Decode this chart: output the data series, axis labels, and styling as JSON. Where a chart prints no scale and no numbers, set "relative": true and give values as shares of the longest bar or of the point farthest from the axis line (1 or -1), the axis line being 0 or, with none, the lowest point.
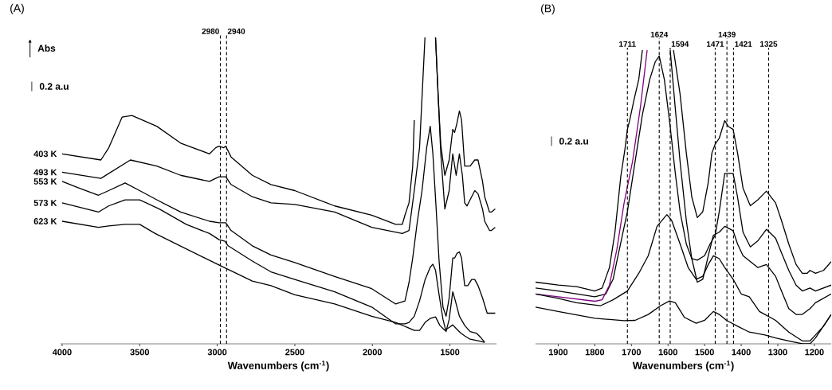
{
  "chart_data": [
    {
      "type": "line",
      "relative": true,
      "title": "(A)",
      "ylabel": "Abs",
      "xlabel": "Wavenumbers (cm$^{-1}$)",
      "annotations": [
        "0.2 a.u"
      ],
      "xlim": [
        4010,
        1200
      ],
      "xticks": [
        4000,
        3500,
        3000,
        2500,
        2000,
        1500
      ],
      "ref_lines": [
        {
          "axis": "x",
          "value": 2980,
          "label": "2980",
          "line_style": "dashed",
          "color": "#000000"
        },
        {
          "axis": "x",
          "value": 2940,
          "label": "2940",
          "line_style": "dashed",
          "color": "#000000"
        }
      ],
      "series": [
        {
          "name": "403 K",
          "color": "#000000",
          "x": [
            4000,
            3750,
            3699,
            3613,
            3550,
            3390,
            3236,
            3050,
            3010,
            2988,
            2960,
            2945,
            2911,
            2774,
            2654,
            2500,
            2243,
            2004,
            1850,
            1807,
            1790,
            1764,
            1740,
            1730,
            1700,
            1593,
            1575,
            1559,
            1533,
            1505,
            1482,
            1470,
            1455,
            1439,
            1425,
            1405,
            1390,
            1370,
            1340,
            1319,
            1290,
            1276,
            1245,
            1233,
            1208
          ],
          "values": [
            0.62,
            0.6,
            0.64,
            0.74,
            0.745,
            0.71,
            0.655,
            0.62,
            0.64,
            0.645,
            0.64,
            0.645,
            0.61,
            0.55,
            0.52,
            0.5,
            0.45,
            0.42,
            0.39,
            0.39,
            0.42,
            0.46,
            0.58,
            0.73,
            null,
            1.0,
            0.8,
            0.65,
            0.55,
            0.6,
            0.7,
            0.69,
            0.72,
            0.76,
            0.73,
            0.58,
            0.58,
            0.58,
            0.6,
            0.6,
            0.53,
            0.48,
            0.43,
            0.43,
            0.44
          ]
        },
        {
          "name": "493 K",
          "color": "#000000",
          "x": [
            4000,
            3750,
            3560,
            3390,
            3236,
            3050,
            3010,
            2988,
            2960,
            2945,
            2911,
            2774,
            2654,
            2500,
            2243,
            2004,
            1807,
            1764,
            1730,
            1696,
            1661,
            1630,
            1593,
            1559,
            1533,
            1505,
            1482,
            1460,
            1439,
            1420,
            1405,
            1390,
            1370,
            1340,
            1319,
            1290,
            1276,
            1245,
            1233,
            1208
          ],
          "values": [
            0.56,
            0.54,
            0.6,
            0.58,
            0.55,
            0.53,
            0.54,
            0.545,
            0.545,
            0.545,
            0.52,
            0.48,
            0.46,
            0.455,
            0.43,
            0.38,
            0.36,
            0.37,
            0.5,
            0.64,
            1.0,
            null,
            1.0,
            0.62,
            0.44,
            0.5,
            0.62,
            0.55,
            0.62,
            0.55,
            0.46,
            0.45,
            0.47,
            0.5,
            0.49,
            0.44,
            0.4,
            0.37,
            0.37,
            0.38
          ]
        },
        {
          "name": "553 K",
          "color": "#000000",
          "x": [
            4000,
            3900,
            3766,
            3700,
            3594,
            3500,
            3390,
            3236,
            3050,
            2988,
            2945,
            2911,
            2774,
            2654,
            2500,
            2243,
            2004,
            1850,
            1790,
            1764,
            1740,
            1730,
            1710,
            1680,
            1650,
            1627,
            1610,
            1590,
            1570,
            1545,
            1525,
            1505,
            1482,
            1470,
            1455,
            1439,
            1425,
            1405,
            1385,
            1360,
            1340,
            1319,
            1290,
            1260,
            1233,
            1208
          ],
          "values": [
            0.53,
            0.51,
            0.485,
            0.5,
            0.525,
            0.5,
            0.47,
            0.43,
            0.4,
            0.395,
            0.395,
            0.37,
            0.32,
            0.29,
            0.265,
            0.22,
            0.18,
            0.13,
            0.14,
            0.2,
            0.28,
            0.32,
            0.4,
            0.5,
            0.64,
            0.71,
            0.62,
            0.45,
            0.27,
            0.12,
            0.09,
            0.15,
            0.28,
            0.28,
            0.295,
            0.3,
            0.28,
            0.19,
            0.19,
            0.21,
            0.21,
            0.19,
            0.15,
            0.1,
            0.1,
            0.1
          ]
        },
        {
          "name": "573 K",
          "color": "#000000",
          "x": [
            4000,
            3766,
            3700,
            3594,
            3500,
            3373,
            3200,
            3050,
            2988,
            2950,
            2930,
            2774,
            2654,
            2500,
            2243,
            2004,
            1850,
            1790,
            1764,
            1730,
            1696,
            1660,
            1627,
            1610,
            1593,
            1570,
            1545,
            1525,
            1505,
            1482,
            1465,
            1439,
            1405,
            1370,
            1330,
            1300,
            1276
          ],
          "values": [
            0.46,
            0.43,
            0.45,
            0.47,
            0.47,
            0.44,
            0.39,
            0.36,
            0.34,
            0.335,
            0.32,
            0.27,
            0.235,
            0.21,
            0.17,
            0.12,
            0.065,
            0.065,
            0.07,
            0.09,
            0.14,
            0.21,
            0.25,
            0.26,
            0.24,
            0.16,
            0.08,
            0.04,
            0.08,
            0.17,
            0.14,
            0.09,
            0.06,
            0.04,
            0.035,
            0.02,
            0.005
          ]
        },
        {
          "name": "623 K",
          "color": "#000000",
          "x": [
            4000,
            3766,
            3700,
            3594,
            3500,
            3400,
            3200,
            3000,
            2774,
            2654,
            2500,
            2243,
            2004,
            1850,
            1730,
            1696,
            1660,
            1627,
            1593,
            1565,
            1533,
            1500,
            1482,
            1460,
            1430,
            1405,
            1370,
            1319,
            1276
          ],
          "values": [
            0.4,
            0.38,
            0.385,
            0.39,
            0.39,
            0.36,
            0.31,
            0.26,
            0.205,
            0.19,
            0.16,
            0.13,
            0.09,
            0.07,
            0.044,
            0.044,
            0.07,
            0.083,
            0.088,
            0.06,
            0.044,
            0.055,
            0.062,
            0.05,
            0.035,
            0.026,
            0.015,
            0.01,
            0.005
          ]
        }
      ]
    },
    {
      "type": "line",
      "relative": true,
      "title": "(B)",
      "xlabel": "Wavenumbers (cm$^{-1}$)",
      "annotations": [
        "0.2 a.u"
      ],
      "xlim": [
        1962,
        1154
      ],
      "xticks": [
        1900,
        1800,
        1700,
        1600,
        1500,
        1400,
        1300,
        1200
      ],
      "ref_lines": [
        {
          "axis": "x",
          "value": 1711,
          "label": "1711",
          "line_style": "dashed",
          "color": "#000000"
        },
        {
          "axis": "x",
          "value": 1624,
          "label": "1624",
          "line_style": "dashed",
          "color": "#000000"
        },
        {
          "axis": "x",
          "value": 1594,
          "label": "1594",
          "line_style": "dashed",
          "color": "#000000"
        },
        {
          "axis": "x",
          "value": 1471,
          "label": "1471",
          "line_style": "dashed",
          "color": "#000000"
        },
        {
          "axis": "x",
          "value": 1439,
          "label": "1439",
          "line_style": "dashed",
          "color": "#000000"
        },
        {
          "axis": "x",
          "value": 1421,
          "label": "1421",
          "line_style": "dashed",
          "color": "#000000"
        },
        {
          "axis": "x",
          "value": 1325,
          "label": "1325",
          "line_style": "dashed",
          "color": "#000000"
        }
      ],
      "series": [
        {
          "color": "#000000",
          "x": [
            1962,
            1900,
            1850,
            1800,
            1780,
            1760,
            1745,
            1729,
            1718,
            1711,
            1705,
            1693,
            1680,
            1670,
            1630,
            1585,
            1567,
            1550,
            1535,
            1520,
            1505,
            1490,
            1480,
            1471,
            1460,
            1445,
            1435,
            1422,
            1410,
            1395,
            1375,
            1355,
            1331,
            1306,
            1290,
            1270,
            1250,
            1233,
            1220,
            1212,
            1197,
            1175,
            1154
          ],
          "values": [
            0.21,
            0.2,
            0.195,
            0.18,
            0.19,
            0.26,
            0.38,
            0.57,
            0.66,
            0.73,
            0.76,
            0.83,
            0.9,
            1.0,
            null,
            1.0,
            0.85,
            0.65,
            0.5,
            0.43,
            0.45,
            0.55,
            0.65,
            0.68,
            0.7,
            0.76,
            0.74,
            0.73,
            0.65,
            0.53,
            0.47,
            0.49,
            0.52,
            0.48,
            0.42,
            0.34,
            0.27,
            0.24,
            0.24,
            0.25,
            0.24,
            0.25,
            0.28
          ]
        },
        {
          "color": "#000000",
          "x": [
            1962,
            1900,
            1800,
            1770,
            1750,
            1740,
            1711,
            1690,
            1670,
            1650,
            1635,
            1624,
            1610,
            1595,
            1580,
            1567,
            1550,
            1535,
            1520,
            1500,
            1485,
            1471,
            1460,
            1445,
            1422,
            1410,
            1395,
            1375,
            1355,
            1331,
            1306,
            1290,
            1270,
            1250,
            1233,
            1212,
            1197,
            1154
          ],
          "values": [
            0.19,
            0.18,
            0.16,
            0.17,
            0.22,
            0.28,
            0.45,
            0.62,
            0.78,
            0.9,
            0.96,
            0.98,
            0.9,
            0.75,
            0.58,
            0.45,
            0.34,
            0.29,
            0.285,
            0.3,
            0.34,
            0.37,
            0.45,
            0.58,
            0.58,
            0.5,
            0.38,
            0.33,
            0.35,
            0.39,
            0.36,
            0.31,
            0.25,
            0.2,
            0.18,
            0.19,
            0.18,
            0.2
          ]
        },
        {
          "color": "#800080",
          "x": [
            1962,
            1900,
            1800,
            1780,
            1760,
            1740,
            1720,
            1697,
            1675,
            1657
          ],
          "values": [
            0.17,
            0.16,
            0.145,
            0.15,
            0.2,
            0.32,
            0.48,
            0.62,
            0.81,
            1.0
          ]
        },
        {
          "color": "#000000",
          "x": [
            1594,
            1580,
            1567,
            1550,
            1535,
            1520,
            1505,
            1490,
            1476,
            1460,
            1445,
            1422,
            1410,
            1395,
            1375,
            1355,
            1331,
            1306,
            1290,
            1270,
            1250,
            1233,
            1212,
            1197,
            1154
          ],
          "values": [
            1.0,
            0.8,
            0.62,
            0.42,
            0.29,
            0.21,
            0.22,
            0.3,
            0.37,
            0.38,
            0.4,
            0.385,
            0.34,
            0.3,
            0.28,
            0.26,
            0.27,
            0.23,
            0.18,
            0.12,
            0.1,
            0.1,
            0.12,
            0.14,
            0.17
          ]
        },
        {
          "color": "#000000",
          "x": [
            1962,
            1900,
            1850,
            1784,
            1750,
            1711,
            1680,
            1654,
            1630,
            1610,
            1603,
            1590,
            1567,
            1545,
            1523,
            1505,
            1490,
            1476,
            1460,
            1445,
            1422,
            1400,
            1378,
            1350,
            1335,
            1306,
            1270,
            1233,
            1212,
            1197,
            1175,
            1154
          ],
          "values": [
            0.17,
            0.155,
            0.14,
            0.13,
            0.15,
            0.18,
            0.24,
            0.3,
            0.4,
            0.43,
            0.44,
            0.42,
            0.34,
            0.26,
            0.22,
            0.23,
            0.27,
            0.3,
            0.29,
            0.26,
            0.22,
            0.17,
            0.16,
            0.11,
            0.1,
            0.08,
            0.04,
            0.01,
            0.01,
            0.03,
            0.06,
            0.1
          ]
        },
        {
          "color": "#000000",
          "x": [
            1962,
            1900,
            1800,
            1720,
            1690,
            1654,
            1620,
            1596,
            1580,
            1555,
            1523,
            1500,
            1476,
            1460,
            1440,
            1410,
            1378,
            1335,
            1306,
            1270,
            1233,
            1212,
            1197,
            1154
          ],
          "values": [
            0.125,
            0.11,
            0.087,
            0.079,
            0.08,
            0.1,
            0.13,
            0.146,
            0.14,
            0.09,
            0.07,
            0.08,
            0.11,
            0.1,
            0.08,
            0.06,
            0.04,
            0.03,
            0.02,
            0.01,
            0.0,
            0.0,
            0.02,
            0.1
          ]
        }
      ]
    }
  ]
}
